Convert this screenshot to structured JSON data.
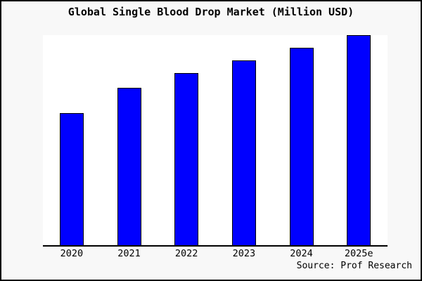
{
  "header": {
    "title": "Global Single Blood Drop Market (Million USD)"
  },
  "footer": {
    "source_label": "Source: Prof Research"
  },
  "colors": {
    "bar_fill": "#0000ff",
    "bar_border": "#000000",
    "figure_bg": "#f8f8f8",
    "plot_bg": "#ffffff",
    "axis": "#000000",
    "frame_border": "#000000",
    "text": "#000000"
  },
  "chart_data": {
    "type": "bar",
    "title": "Global Single Blood Drop Market (Million USD)",
    "categories": [
      "2020",
      "2021",
      "2022",
      "2023",
      "2024",
      "2025e"
    ],
    "values": [
      63,
      75,
      82,
      88,
      94,
      100
    ],
    "value_scale": "relative estimate, 2025e = 100 (no y-axis labels shown)",
    "xlabel": "",
    "ylabel": "",
    "ylim": [
      0,
      100
    ],
    "grid": false,
    "legend_position": "none",
    "source": "Source: Prof Research"
  }
}
